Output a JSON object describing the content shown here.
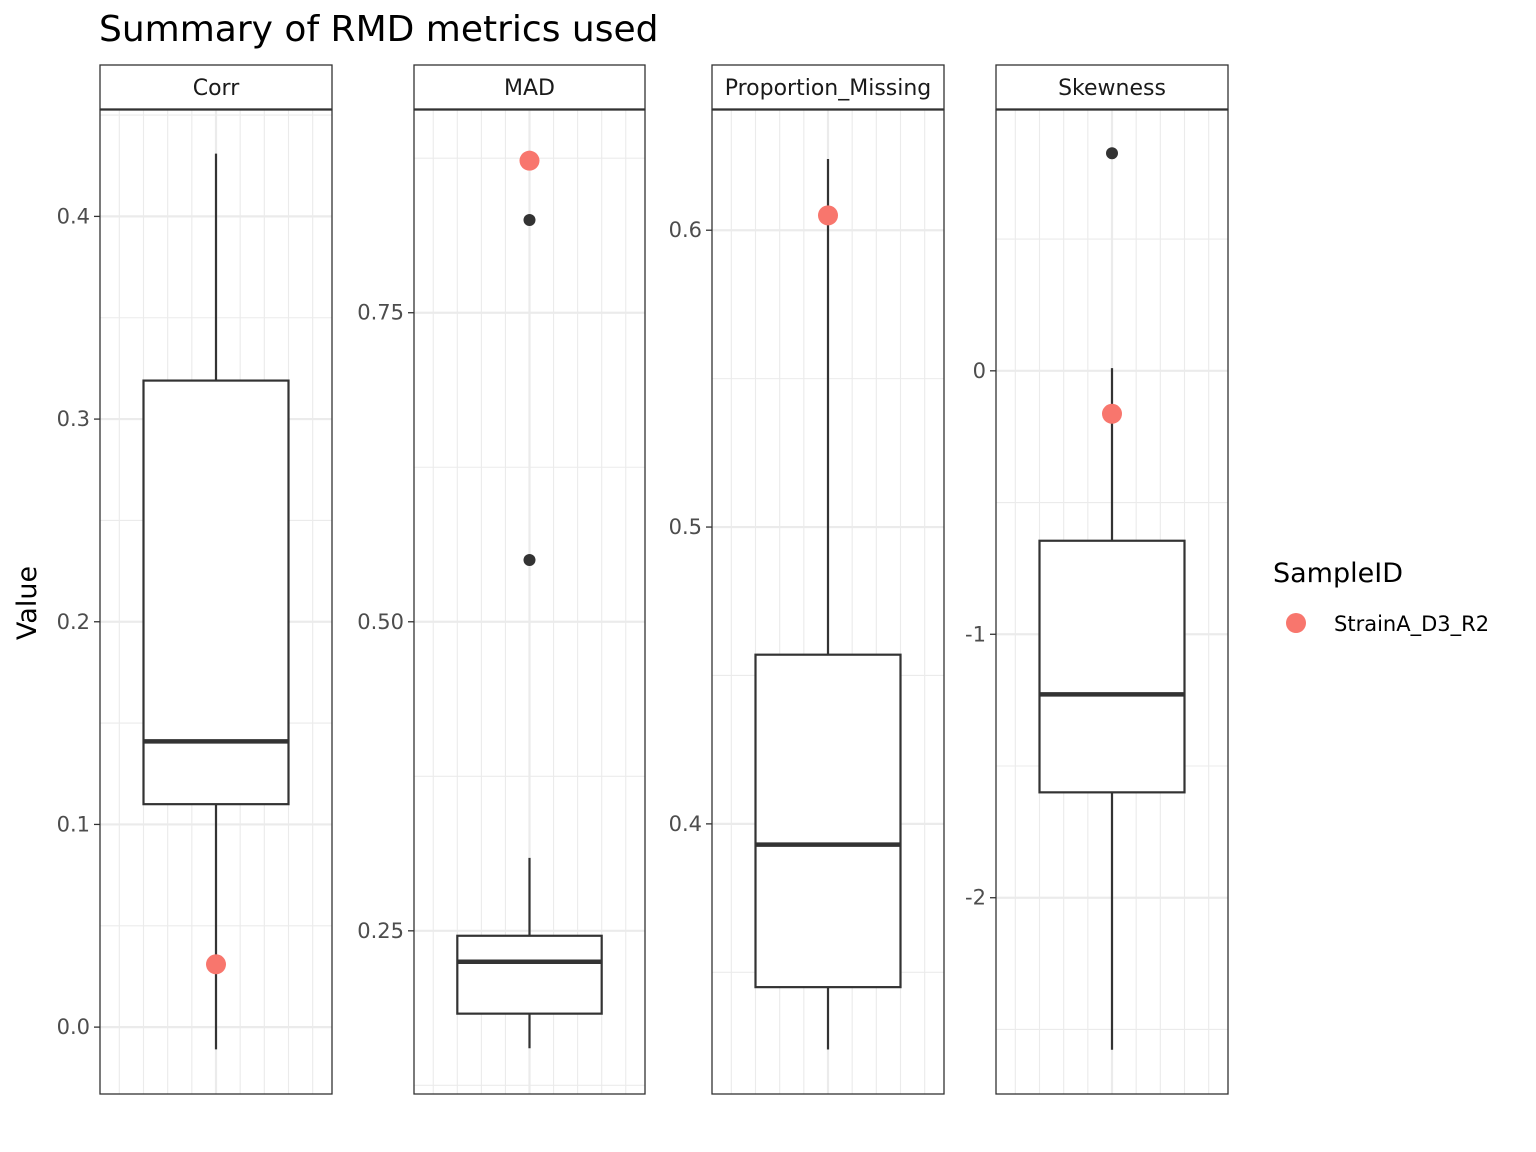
{
  "chart_data": {
    "type": "box",
    "title": "Summary of RMD metrics used",
    "xlabel": "",
    "ylabel": "Value",
    "grid": true,
    "legend": {
      "title": "SampleID",
      "placement": "right",
      "entries": [
        {
          "label": "StrainA_D3_R2",
          "color": "#F8766D"
        }
      ]
    },
    "facets": [
      {
        "label": "Corr",
        "ylim": [
          -0.033,
          0.4525
        ],
        "yticks": [
          0.0,
          0.1,
          0.2,
          0.3,
          0.4
        ],
        "tick_labels": [
          "0.0",
          "0.1",
          "0.2",
          "0.3",
          "0.4"
        ],
        "box": {
          "lower_whisker": -0.011,
          "q1": 0.11,
          "median": 0.141,
          "q3": 0.319,
          "upper_whisker": 0.431
        },
        "outliers": [],
        "highlight": {
          "sample": "StrainA_D3_R2",
          "value": 0.031
        }
      },
      {
        "label": "MAD",
        "ylim": [
          0.118,
          0.914
        ],
        "yticks": [
          0.25,
          0.5,
          0.75
        ],
        "tick_labels": [
          "0.25",
          "0.50",
          "0.75"
        ],
        "box": {
          "lower_whisker": 0.155,
          "q1": 0.183,
          "median": 0.225,
          "q3": 0.246,
          "upper_whisker": 0.309
        },
        "outliers": [
          0.55,
          0.825
        ],
        "highlight": {
          "sample": "StrainA_D3_R2",
          "value": 0.873
        }
      },
      {
        "label": "Proportion_Missing",
        "ylim": [
          0.309,
          0.6405
        ],
        "yticks": [
          0.4,
          0.5,
          0.6
        ],
        "tick_labels": [
          "0.4",
          "0.5",
          "0.6"
        ],
        "box": {
          "lower_whisker": 0.324,
          "q1": 0.345,
          "median": 0.393,
          "q3": 0.457,
          "upper_whisker": 0.624
        },
        "outliers": [],
        "highlight": {
          "sample": "StrainA_D3_R2",
          "value": 0.605
        }
      },
      {
        "label": "Skewness",
        "ylim": [
          -2.745,
          0.99
        ],
        "yticks": [
          -2,
          -1,
          0
        ],
        "tick_labels": [
          "-2",
          "-1",
          "0"
        ],
        "box": {
          "lower_whisker": -2.577,
          "q1": -1.6,
          "median": -1.228,
          "q3": -0.645,
          "upper_whisker": 0.01
        },
        "outliers": [
          0.826
        ],
        "highlight": {
          "sample": "StrainA_D3_R2",
          "value": -0.163
        }
      }
    ]
  }
}
